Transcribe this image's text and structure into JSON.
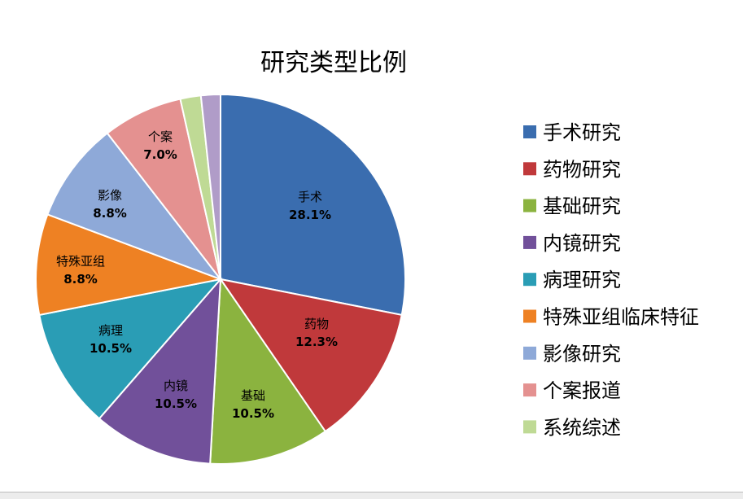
{
  "chart_data": {
    "type": "pie",
    "title": "研究类型比例",
    "slices": [
      {
        "label": "手术",
        "value": 28.1,
        "value_label": "28.1%",
        "color": "#3A6DAF"
      },
      {
        "label": "药物",
        "value": 12.3,
        "value_label": "12.3%",
        "color": "#C0393B"
      },
      {
        "label": "基础",
        "value": 10.5,
        "value_label": "10.5%",
        "color": "#8BB33F"
      },
      {
        "label": "内镜",
        "value": 10.5,
        "value_label": "10.5%",
        "color": "#71509A"
      },
      {
        "label": "病理",
        "value": 10.5,
        "value_label": "10.5%",
        "color": "#2A9DB5"
      },
      {
        "label": "特殊亚组",
        "value": 8.8,
        "value_label": "8.8%",
        "color": "#EE8123"
      },
      {
        "label": "影像",
        "value": 8.8,
        "value_label": "8.8%",
        "color": "#8EA9D8"
      },
      {
        "label": "个案",
        "value": 7.0,
        "value_label": "7.0%",
        "color": "#E49190"
      },
      {
        "label": "",
        "value": 1.8,
        "value_label": "",
        "color": "#BFDA95"
      },
      {
        "label": "",
        "value": 1.7,
        "value_label": "",
        "color": "#B09CC8"
      }
    ],
    "legend": {
      "placement": "right",
      "entries": [
        {
          "text": "手术研究",
          "color": "#3A6DAF"
        },
        {
          "text": "药物研究",
          "color": "#C0393B"
        },
        {
          "text": "基础研究",
          "color": "#8BB33F"
        },
        {
          "text": "内镜研究",
          "color": "#71509A"
        },
        {
          "text": "病理研究",
          "color": "#2A9DB5"
        },
        {
          "text": "特殊亚组临床特征",
          "color": "#EE8123"
        },
        {
          "text": "影像研究",
          "color": "#8EA9D8"
        },
        {
          "text": "个案报道",
          "color": "#E49190"
        },
        {
          "text": "系统综述",
          "color": "#BFDA95"
        }
      ]
    }
  }
}
